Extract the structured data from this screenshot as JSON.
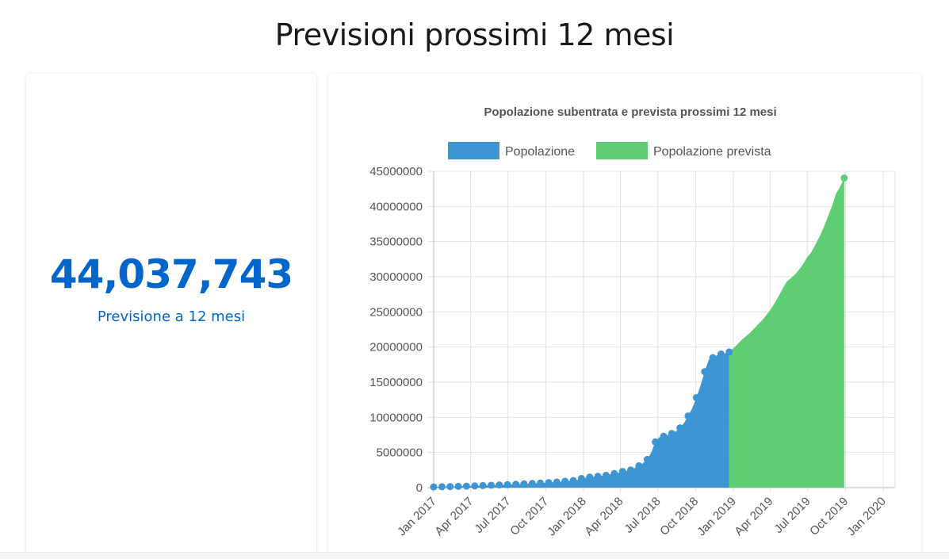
{
  "page": {
    "title": "Previsioni prossimi 12 mesi"
  },
  "kpi": {
    "value": "44,037,743",
    "caption": "Previsione a 12 mesi",
    "color": "#0066cc"
  },
  "chart_data": {
    "type": "area",
    "title": "Popolazione subentrata e prevista prossimi 12 mesi",
    "legend_position": "top",
    "grid": true,
    "ylim": [
      0,
      45000000
    ],
    "y_ticks": [
      0,
      5000000,
      10000000,
      15000000,
      20000000,
      25000000,
      30000000,
      35000000,
      40000000,
      45000000
    ],
    "x_ticks": [
      "Jan 2017",
      "Apr 2017",
      "Jul 2017",
      "Oct 2017",
      "Jan 2018",
      "Apr 2018",
      "Jul 2018",
      "Oct 2018",
      "Jan 2019",
      "Apr 2019",
      "Jul 2019",
      "Oct 2019",
      "Jan 2020"
    ],
    "series": [
      {
        "name": "Popolazione",
        "color": "#3d95d2",
        "points": [
          [
            "2017-01-01",
            100000
          ],
          [
            "2017-01-11",
            110000
          ],
          [
            "2017-01-21",
            120000
          ],
          [
            "2017-01-31",
            130000
          ],
          [
            "2017-02-10",
            150000
          ],
          [
            "2017-02-20",
            160000
          ],
          [
            "2017-03-02",
            180000
          ],
          [
            "2017-03-12",
            200000
          ],
          [
            "2017-03-22",
            210000
          ],
          [
            "2017-04-01",
            230000
          ],
          [
            "2017-04-11",
            250000
          ],
          [
            "2017-04-21",
            270000
          ],
          [
            "2017-05-01",
            290000
          ],
          [
            "2017-05-11",
            320000
          ],
          [
            "2017-05-21",
            340000
          ],
          [
            "2017-05-31",
            360000
          ],
          [
            "2017-06-10",
            380000
          ],
          [
            "2017-06-20",
            400000
          ],
          [
            "2017-06-30",
            430000
          ],
          [
            "2017-07-10",
            450000
          ],
          [
            "2017-07-20",
            480000
          ],
          [
            "2017-07-30",
            500000
          ],
          [
            "2017-08-09",
            530000
          ],
          [
            "2017-08-19",
            560000
          ],
          [
            "2017-08-29",
            590000
          ],
          [
            "2017-09-08",
            620000
          ],
          [
            "2017-09-18",
            650000
          ],
          [
            "2017-09-28",
            680000
          ],
          [
            "2017-10-08",
            720000
          ],
          [
            "2017-10-18",
            760000
          ],
          [
            "2017-10-28",
            800000
          ],
          [
            "2017-11-07",
            850000
          ],
          [
            "2017-11-17",
            900000
          ],
          [
            "2017-11-27",
            950000
          ],
          [
            "2017-12-07",
            1000000
          ],
          [
            "2017-12-17",
            1100000
          ],
          [
            "2017-12-27",
            1300000
          ],
          [
            "2018-01-06",
            1400000
          ],
          [
            "2018-01-16",
            1500000
          ],
          [
            "2018-01-26",
            1550000
          ],
          [
            "2018-02-05",
            1600000
          ],
          [
            "2018-02-15",
            1700000
          ],
          [
            "2018-02-25",
            1750000
          ],
          [
            "2018-03-07",
            1900000
          ],
          [
            "2018-03-17",
            2000000
          ],
          [
            "2018-03-27",
            2100000
          ],
          [
            "2018-04-06",
            2300000
          ],
          [
            "2018-04-16",
            2400000
          ],
          [
            "2018-04-26",
            2500000
          ],
          [
            "2018-05-06",
            2800000
          ],
          [
            "2018-05-16",
            3100000
          ],
          [
            "2018-05-26",
            3500000
          ],
          [
            "2018-06-05",
            4000000
          ],
          [
            "2018-06-15",
            5000000
          ],
          [
            "2018-06-25",
            6500000
          ],
          [
            "2018-07-05",
            7200000
          ],
          [
            "2018-07-15",
            7300000
          ],
          [
            "2018-07-25",
            7500000
          ],
          [
            "2018-08-04",
            7700000
          ],
          [
            "2018-08-14",
            8000000
          ],
          [
            "2018-08-24",
            8500000
          ],
          [
            "2018-09-03",
            9200000
          ],
          [
            "2018-09-13",
            10200000
          ],
          [
            "2018-09-23",
            11300000
          ],
          [
            "2018-10-03",
            12800000
          ],
          [
            "2018-10-13",
            14500000
          ],
          [
            "2018-10-23",
            16500000
          ],
          [
            "2018-11-02",
            18200000
          ],
          [
            "2018-11-12",
            18500000
          ],
          [
            "2018-11-22",
            18800000
          ],
          [
            "2018-12-02",
            19000000
          ],
          [
            "2018-12-12",
            19100000
          ],
          [
            "2018-12-22",
            19300000
          ]
        ]
      },
      {
        "name": "Popolazione prevista",
        "color": "#5ecd73",
        "points": [
          [
            "2018-12-22",
            19300000
          ],
          [
            "2019-01-01",
            19800000
          ],
          [
            "2019-01-11",
            20400000
          ],
          [
            "2019-01-21",
            21000000
          ],
          [
            "2019-01-31",
            21500000
          ],
          [
            "2019-02-10",
            22000000
          ],
          [
            "2019-02-20",
            22600000
          ],
          [
            "2019-03-02",
            23200000
          ],
          [
            "2019-03-12",
            23800000
          ],
          [
            "2019-03-22",
            24500000
          ],
          [
            "2019-04-01",
            25300000
          ],
          [
            "2019-04-11",
            26200000
          ],
          [
            "2019-04-21",
            27200000
          ],
          [
            "2019-05-01",
            28300000
          ],
          [
            "2019-05-11",
            29300000
          ],
          [
            "2019-05-21",
            29800000
          ],
          [
            "2019-05-31",
            30300000
          ],
          [
            "2019-06-10",
            31000000
          ],
          [
            "2019-06-20",
            31800000
          ],
          [
            "2019-06-30",
            32800000
          ],
          [
            "2019-07-10",
            33500000
          ],
          [
            "2019-07-20",
            34600000
          ],
          [
            "2019-07-30",
            35700000
          ],
          [
            "2019-08-09",
            37000000
          ],
          [
            "2019-08-19",
            38500000
          ],
          [
            "2019-08-29",
            40000000
          ],
          [
            "2019-09-08",
            41800000
          ],
          [
            "2019-09-18",
            42800000
          ],
          [
            "2019-09-28",
            44037743
          ]
        ]
      }
    ]
  }
}
